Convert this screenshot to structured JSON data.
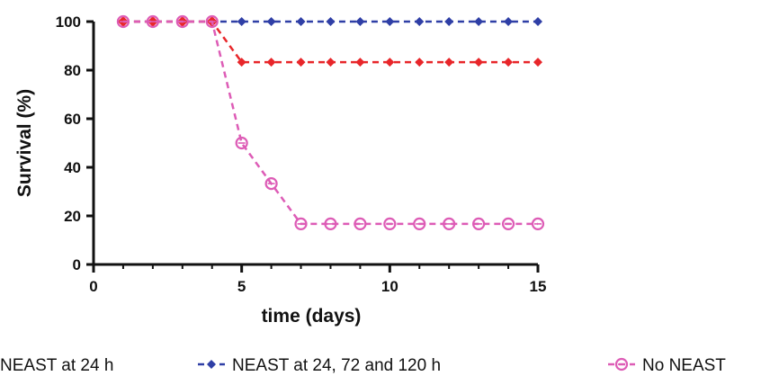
{
  "chart_data": {
    "type": "line",
    "xlabel": "time (days)",
    "ylabel": "Survival (%)",
    "xlim": [
      0,
      15
    ],
    "ylim": [
      0,
      100
    ],
    "xticks": [
      0,
      5,
      10,
      15
    ],
    "yticks": [
      0,
      20,
      40,
      60,
      80,
      100
    ],
    "grid": false,
    "legend_position": "bottom",
    "series": [
      {
        "name": "NEAST at 24 h",
        "color": "#e8262a",
        "marker": "diamond",
        "x": [
          1,
          2,
          3,
          4,
          5,
          6,
          7,
          8,
          9,
          10,
          11,
          12,
          13,
          14,
          15
        ],
        "y": [
          100,
          100,
          100,
          100,
          83.3,
          83.3,
          83.3,
          83.3,
          83.3,
          83.3,
          83.3,
          83.3,
          83.3,
          83.3,
          83.3
        ]
      },
      {
        "name": "NEAST at 24, 72 and 120 h",
        "color": "#2f3fa6",
        "marker": "diamond",
        "x": [
          1,
          2,
          3,
          4,
          5,
          6,
          7,
          8,
          9,
          10,
          11,
          12,
          13,
          14,
          15
        ],
        "y": [
          100,
          100,
          100,
          100,
          100,
          100,
          100,
          100,
          100,
          100,
          100,
          100,
          100,
          100,
          100
        ]
      },
      {
        "name": "No NEAST",
        "color": "#dd5cb6",
        "marker": "open-circle",
        "x": [
          1,
          2,
          3,
          4,
          5,
          6,
          7,
          8,
          9,
          10,
          11,
          12,
          13,
          14,
          15
        ],
        "y": [
          100,
          100,
          100,
          100,
          50,
          33.3,
          16.7,
          16.7,
          16.7,
          16.7,
          16.7,
          16.7,
          16.7,
          16.7,
          16.7
        ]
      }
    ]
  }
}
